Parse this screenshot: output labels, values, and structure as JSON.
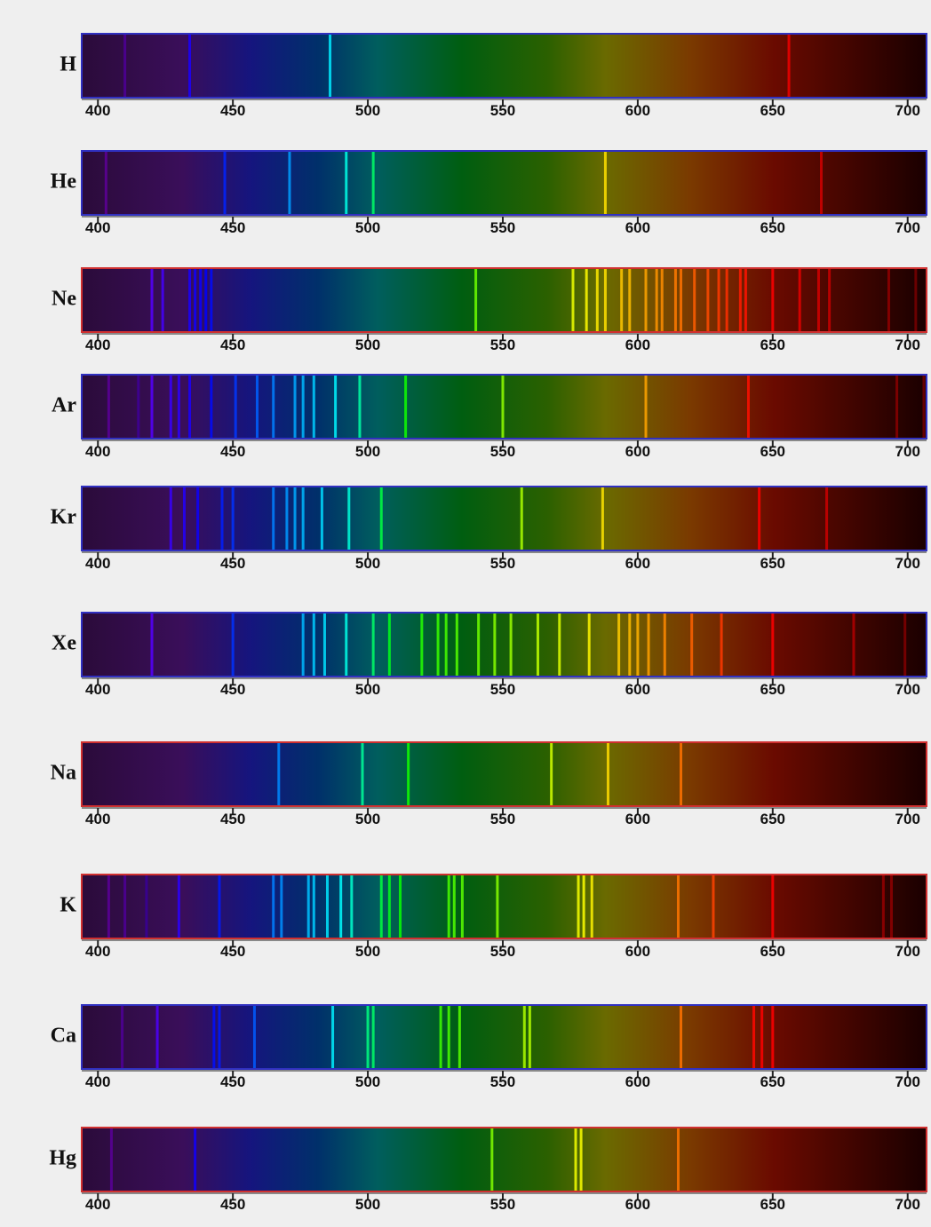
{
  "chart_data": [
    {
      "type": "spectrum",
      "title": "H",
      "border_color": "#3030c0",
      "xlim": [
        394,
        707
      ],
      "xticks": [
        400,
        450,
        500,
        550,
        600,
        650,
        700
      ],
      "x": [
        410,
        434,
        486,
        656
      ]
    },
    {
      "type": "spectrum",
      "title": "He",
      "border_color": "#3030c0",
      "xlim": [
        394,
        707
      ],
      "xticks": [
        400,
        450,
        500,
        550,
        600,
        650,
        700
      ],
      "x": [
        403,
        447,
        471,
        492,
        502,
        588,
        668
      ]
    },
    {
      "type": "spectrum",
      "title": "Ne",
      "border_color": "#d03030",
      "xlim": [
        394,
        707
      ],
      "xticks": [
        400,
        450,
        500,
        550,
        600,
        650,
        700
      ],
      "x": [
        420,
        424,
        434,
        436,
        438,
        440,
        442,
        540,
        576,
        581,
        585,
        588,
        594,
        597,
        603,
        607,
        609,
        614,
        616,
        621,
        626,
        630,
        633,
        638,
        640,
        650,
        660,
        667,
        671,
        693,
        703
      ]
    },
    {
      "type": "spectrum",
      "title": "Ar",
      "border_color": "#3030c0",
      "xlim": [
        394,
        707
      ],
      "xticks": [
        400,
        450,
        500,
        550,
        600,
        650,
        700
      ],
      "x": [
        404,
        415,
        420,
        427,
        430,
        434,
        442,
        451,
        459,
        465,
        473,
        476,
        480,
        488,
        497,
        514,
        550,
        603,
        641,
        696,
        706
      ]
    },
    {
      "type": "spectrum",
      "title": "Kr",
      "border_color": "#3030c0",
      "xlim": [
        394,
        707
      ],
      "xticks": [
        400,
        450,
        500,
        550,
        600,
        650,
        700
      ],
      "x": [
        427,
        432,
        437,
        446,
        450,
        465,
        470,
        473,
        476,
        483,
        493,
        505,
        557,
        587,
        645,
        670
      ]
    },
    {
      "type": "spectrum",
      "title": "Xe",
      "border_color": "#3030c0",
      "xlim": [
        394,
        707
      ],
      "xticks": [
        400,
        450,
        500,
        550,
        600,
        650,
        700
      ],
      "x": [
        420,
        450,
        476,
        480,
        484,
        492,
        502,
        508,
        520,
        526,
        529,
        533,
        541,
        547,
        553,
        563,
        571,
        582,
        593,
        597,
        600,
        604,
        610,
        620,
        631,
        650,
        680,
        699
      ]
    },
    {
      "type": "spectrum",
      "title": "Na",
      "border_color": "#d03030",
      "xlim": [
        394,
        707
      ],
      "xticks": [
        400,
        450,
        500,
        550,
        600,
        650,
        700
      ],
      "x": [
        467,
        498,
        515,
        568,
        589,
        616
      ]
    },
    {
      "type": "spectrum",
      "title": "K",
      "border_color": "#d03030",
      "xlim": [
        394,
        707
      ],
      "xticks": [
        400,
        450,
        500,
        550,
        600,
        650,
        700
      ],
      "x": [
        404,
        410,
        418,
        430,
        445,
        465,
        468,
        478,
        480,
        485,
        490,
        494,
        505,
        508,
        512,
        530,
        532,
        535,
        548,
        578,
        580,
        583,
        615,
        628,
        650,
        691,
        694
      ]
    },
    {
      "type": "spectrum",
      "title": "Ca",
      "border_color": "#3030c0",
      "xlim": [
        394,
        707
      ],
      "xticks": [
        400,
        450,
        500,
        550,
        600,
        650,
        700
      ],
      "x": [
        409,
        422,
        443,
        445,
        458,
        487,
        500,
        502,
        527,
        530,
        534,
        558,
        560,
        616,
        643,
        646,
        650
      ]
    },
    {
      "type": "spectrum",
      "title": "Hg",
      "border_color": "#d03030",
      "xlim": [
        394,
        707
      ],
      "xticks": [
        400,
        450,
        500,
        550,
        600,
        650,
        700
      ],
      "x": [
        405,
        436,
        546,
        577,
        579,
        615
      ]
    }
  ]
}
